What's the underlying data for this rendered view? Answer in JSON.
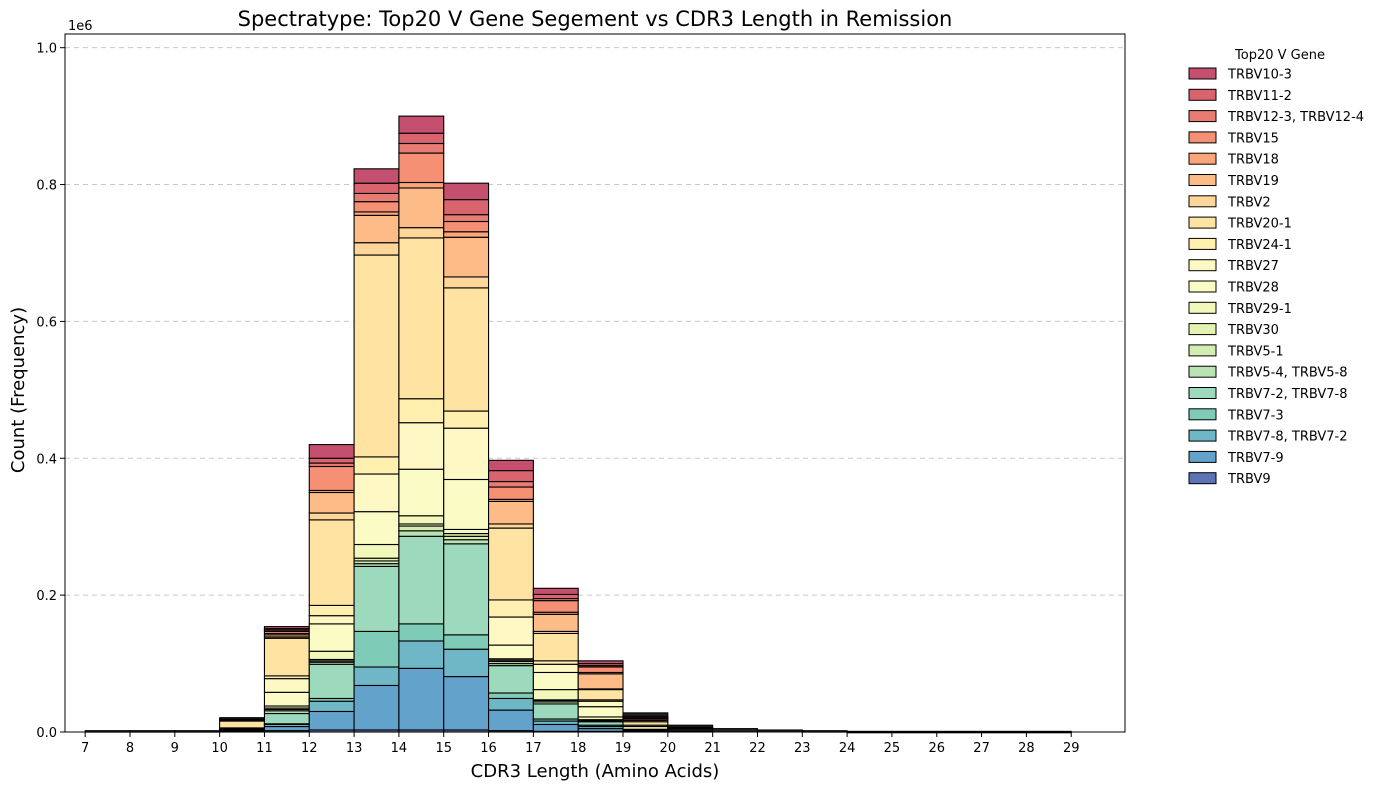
{
  "chart_data": {
    "type": "bar",
    "stacked": true,
    "title": "Spectratype: Top20 V Gene Segement vs CDR3 Length in Remission",
    "xlabel": "CDR3 Length (Amino Acids)",
    "ylabel": "Count (Frequency)",
    "y_offset_label": "1e6",
    "ylim": [
      0,
      1.02
    ],
    "y_ticks": [
      "0.0",
      "0.2",
      "0.4",
      "0.6",
      "0.8",
      "1.0"
    ],
    "y_tick_values": [
      0,
      0.2,
      0.4,
      0.6,
      0.8,
      1.0
    ],
    "x_ticks": [
      "7",
      "8",
      "9",
      "10",
      "11",
      "12",
      "13",
      "14",
      "15",
      "16",
      "17",
      "18",
      "19",
      "20",
      "21",
      "22",
      "23",
      "24",
      "25",
      "26",
      "27",
      "28",
      "29"
    ],
    "bin_edges": [
      7,
      8,
      9,
      10,
      11,
      12,
      13,
      14,
      15,
      16,
      17,
      18,
      19,
      20,
      21,
      22,
      23,
      24,
      25,
      26,
      27,
      28,
      29
    ],
    "grid": "y-dashed",
    "legend_title": "Top20 V Gene",
    "legend_position": "outside-right",
    "series": [
      {
        "name": "TRBV9",
        "color": "#5e73b5",
        "values": [
          0,
          0,
          0,
          0,
          0.002,
          0.003,
          0.003,
          0.003,
          0.003,
          0.002,
          0.001,
          0.001,
          0,
          0,
          0,
          0,
          0,
          0,
          0,
          0,
          0,
          0
        ]
      },
      {
        "name": "TRBV7-9",
        "color": "#62a2cb",
        "values": [
          0,
          0,
          0,
          0.001,
          0.006,
          0.027,
          0.065,
          0.09,
          0.078,
          0.03,
          0.01,
          0.004,
          0.001,
          0,
          0,
          0,
          0,
          0,
          0,
          0,
          0,
          0
        ]
      },
      {
        "name": "TRBV7-8, TRBV7-2",
        "color": "#6fb6c7",
        "values": [
          0,
          0,
          0,
          0.001,
          0.003,
          0.015,
          0.027,
          0.04,
          0.04,
          0.017,
          0.005,
          0.003,
          0.001,
          0,
          0,
          0,
          0,
          0,
          0,
          0,
          0,
          0
        ]
      },
      {
        "name": "TRBV7-3",
        "color": "#7ecbb7",
        "values": [
          0,
          0,
          0,
          0,
          0.001,
          0.004,
          0.052,
          0.025,
          0.021,
          0.008,
          0.003,
          0.002,
          0,
          0,
          0,
          0,
          0,
          0,
          0,
          0,
          0,
          0
        ]
      },
      {
        "name": "TRBV7-2, TRBV7-8",
        "color": "#9dd9bd",
        "values": [
          0,
          0,
          0,
          0.001,
          0.015,
          0.05,
          0.095,
          0.128,
          0.133,
          0.04,
          0.022,
          0.005,
          0.001,
          0,
          0,
          0,
          0,
          0,
          0,
          0,
          0,
          0
        ]
      },
      {
        "name": "TRBV5-4, TRBV5-8",
        "color": "#b9e3b3",
        "values": [
          0,
          0,
          0,
          0,
          0.004,
          0.003,
          0.004,
          0.008,
          0.006,
          0.003,
          0.003,
          0.001,
          0,
          0,
          0,
          0,
          0,
          0,
          0,
          0,
          0,
          0
        ]
      },
      {
        "name": "TRBV5-1",
        "color": "#d3ecb2",
        "values": [
          0,
          0,
          0,
          0,
          0.002,
          0.002,
          0.004,
          0.007,
          0.005,
          0.003,
          0.002,
          0.001,
          0,
          0,
          0,
          0,
          0,
          0,
          0,
          0,
          0,
          0
        ]
      },
      {
        "name": "TRBV30",
        "color": "#e4f2b0",
        "values": [
          0,
          0,
          0,
          0,
          0.002,
          0.002,
          0.004,
          0.003,
          0.004,
          0.002,
          0.001,
          0.001,
          0,
          0,
          0,
          0,
          0,
          0,
          0,
          0,
          0,
          0
        ]
      },
      {
        "name": "TRBV29-1",
        "color": "#f2f8b9",
        "values": [
          0,
          0,
          0,
          0,
          0.003,
          0.012,
          0.02,
          0.012,
          0.006,
          0.002,
          0.015,
          0.004,
          0.001,
          0,
          0,
          0,
          0,
          0,
          0,
          0,
          0,
          0
        ]
      },
      {
        "name": "TRBV28",
        "color": "#fbfbc6",
        "values": [
          0,
          0,
          0,
          0.001,
          0.02,
          0.04,
          0.048,
          0.068,
          0.073,
          0.02,
          0.025,
          0.015,
          0.004,
          0.001,
          0,
          0,
          0,
          0,
          0,
          0,
          0,
          0
        ]
      },
      {
        "name": "TRBV27",
        "color": "#fef9c4",
        "values": [
          0,
          0,
          0,
          0.001,
          0.02,
          0.012,
          0.055,
          0.068,
          0.075,
          0.041,
          0.012,
          0.008,
          0.002,
          0.001,
          0,
          0,
          0,
          0,
          0,
          0,
          0,
          0
        ]
      },
      {
        "name": "TRBV24-1",
        "color": "#fff0b0",
        "values": [
          0,
          0,
          0,
          0.001,
          0.004,
          0.015,
          0.025,
          0.035,
          0.025,
          0.025,
          0.005,
          0.002,
          0,
          0,
          0,
          0,
          0,
          0,
          0,
          0,
          0,
          0
        ]
      },
      {
        "name": "TRBV20-1",
        "color": "#ffe3a3",
        "values": [
          0,
          0,
          0,
          0.01,
          0.055,
          0.125,
          0.295,
          0.235,
          0.18,
          0.105,
          0.04,
          0.015,
          0.005,
          0.002,
          0,
          0,
          0,
          0,
          0,
          0,
          0,
          0
        ]
      },
      {
        "name": "TRBV2",
        "color": "#fed69a",
        "values": [
          0,
          0,
          0,
          0.001,
          0.002,
          0.01,
          0.018,
          0.015,
          0.016,
          0.006,
          0.003,
          0.001,
          0,
          0,
          0,
          0,
          0,
          0,
          0,
          0,
          0,
          0
        ]
      },
      {
        "name": "TRBV19",
        "color": "#fdbc87",
        "values": [
          0,
          0,
          0,
          0.001,
          0.003,
          0.03,
          0.04,
          0.058,
          0.058,
          0.033,
          0.025,
          0.022,
          0.002,
          0.001,
          0,
          0,
          0,
          0,
          0,
          0,
          0,
          0
        ]
      },
      {
        "name": "TRBV18",
        "color": "#fba578",
        "values": [
          0,
          0,
          0,
          0,
          0.002,
          0.003,
          0.005,
          0.008,
          0.008,
          0.003,
          0.003,
          0.002,
          0,
          0,
          0,
          0,
          0,
          0,
          0,
          0,
          0,
          0
        ]
      },
      {
        "name": "TRBV15",
        "color": "#f59074",
        "values": [
          0,
          0,
          0,
          0,
          0.003,
          0.035,
          0.015,
          0.043,
          0.015,
          0.018,
          0.017,
          0.008,
          0.002,
          0.001,
          0,
          0,
          0,
          0,
          0,
          0,
          0,
          0
        ]
      },
      {
        "name": "TRBV12-3, TRBV12-4",
        "color": "#e87c73",
        "values": [
          0,
          0,
          0,
          0,
          0.002,
          0.005,
          0.012,
          0.014,
          0.01,
          0.008,
          0.003,
          0.002,
          0.001,
          0,
          0,
          0,
          0,
          0,
          0,
          0,
          0,
          0
        ]
      },
      {
        "name": "TRBV11-2",
        "color": "#d9636f",
        "values": [
          0,
          0,
          0,
          0,
          0.002,
          0.007,
          0.015,
          0.015,
          0.022,
          0.016,
          0.006,
          0.003,
          0.001,
          0,
          0,
          0,
          0,
          0,
          0,
          0,
          0,
          0
        ]
      },
      {
        "name": "TRBV10-3",
        "color": "#c44f6e",
        "values": [
          0,
          0,
          0,
          0.001,
          0.003,
          0.02,
          0.021,
          0.025,
          0.024,
          0.015,
          0.009,
          0.004,
          0.002,
          0.001,
          0,
          0,
          0,
          0,
          0,
          0,
          0,
          0
        ]
      }
    ],
    "tail_totals": [
      0.002,
      0.002,
      0.002,
      0.002,
      0,
      0,
      0,
      0,
      0,
      0,
      0,
      0,
      0.005,
      0.003,
      0.005,
      0.003,
      0.002,
      0.001,
      0.001,
      0.001,
      0.001,
      0.001
    ]
  }
}
